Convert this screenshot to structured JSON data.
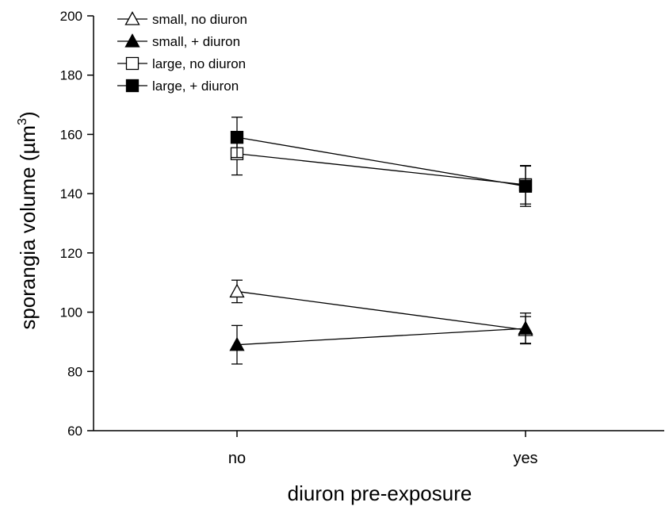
{
  "chart_data": {
    "type": "line",
    "categories": [
      "no",
      "yes"
    ],
    "xlabel": "diuron pre-exposure",
    "ylabel": "sporangia volume (µm",
    "ylabel_sup": "3",
    "ylabel_close": ")",
    "ylim": [
      60,
      200
    ],
    "yticks": [
      60,
      80,
      100,
      120,
      140,
      160,
      180,
      200
    ],
    "grid": false,
    "legend_position": "top-left",
    "series": [
      {
        "name": "small, no diuron",
        "marker": "triangle",
        "filled": false,
        "values": [
          107,
          94
        ],
        "errors": [
          3.8,
          4.5
        ]
      },
      {
        "name": "small, + diuron",
        "marker": "triangle",
        "filled": true,
        "values": [
          89,
          94.5
        ],
        "errors": [
          6.5,
          5.2
        ]
      },
      {
        "name": "large, no diuron",
        "marker": "square",
        "filled": false,
        "values": [
          153.5,
          143
        ],
        "errors": [
          7.2,
          6.5
        ]
      },
      {
        "name": "large, + diuron",
        "marker": "square",
        "filled": true,
        "values": [
          159,
          142.5
        ],
        "errors": [
          6.8,
          6.8
        ]
      }
    ]
  }
}
